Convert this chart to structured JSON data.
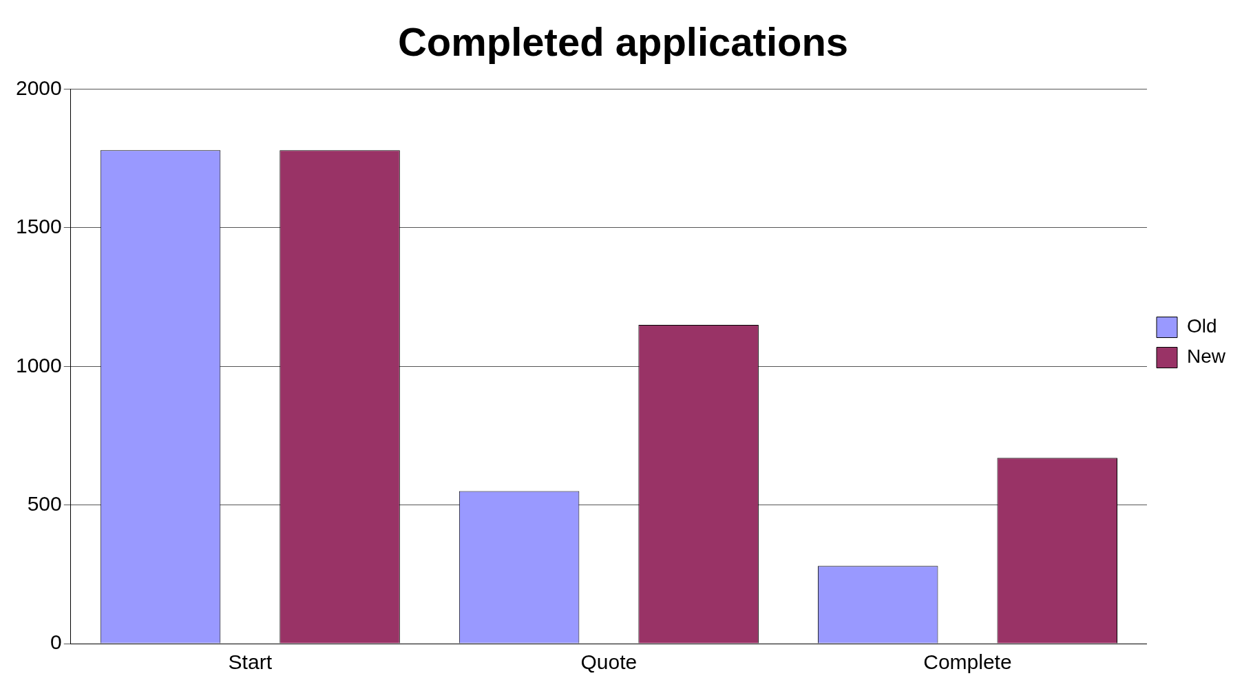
{
  "chart_data": {
    "type": "bar",
    "title": "Completed applications",
    "categories": [
      "Start",
      "Quote",
      "Complete"
    ],
    "series": [
      {
        "name": "Old",
        "color": "#9999ff",
        "values": [
          1780,
          550,
          280
        ]
      },
      {
        "name": "New",
        "color": "#993366",
        "values": [
          1780,
          1150,
          670
        ]
      }
    ],
    "ylim": [
      0,
      2000
    ],
    "yticks": [
      0,
      500,
      1000,
      1500,
      2000
    ],
    "grid": "y",
    "legend": "right"
  }
}
